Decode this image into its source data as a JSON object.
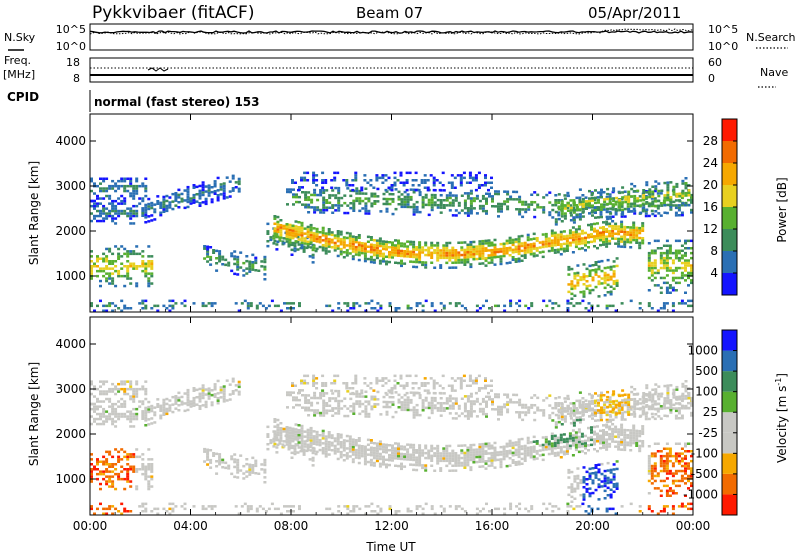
{
  "header": {
    "station": "Pykkvibaer (fitACF)",
    "beam": "Beam 07",
    "date": "05/Apr/2011"
  },
  "nsky_panel": {
    "left_label": "N.Sky",
    "left_ticks": [
      "10^5",
      "10^0"
    ],
    "right_label": "N.Search",
    "right_ticks": [
      "10^5",
      "10^0"
    ]
  },
  "freq_panel": {
    "left_label": "Freq.",
    "left_unit": "[MHz]",
    "left_ticks": [
      "18",
      "8"
    ],
    "right_label": "Nave",
    "right_ticks": [
      "60",
      "0"
    ]
  },
  "cpid": {
    "label": "CPID",
    "text": "normal (fast stereo) 153"
  },
  "colors": {
    "scale": [
      "#1414ff",
      "#2a6fb4",
      "#3c8c5a",
      "#58b030",
      "#e8d020",
      "#f6a800",
      "#f26b00",
      "#ff1a00"
    ],
    "gray": "#c8c8c4"
  },
  "chart_data": [
    {
      "type": "heatmap",
      "name": "power",
      "xlabel": "Time UT",
      "ylabel": "Slant Range [km]",
      "x_ticks": [
        "00:00",
        "04:00",
        "08:00",
        "12:00",
        "16:00",
        "20:00",
        "00:00"
      ],
      "y_ticks": [
        "1000",
        "2000",
        "3000",
        "4000"
      ],
      "ylim": [
        200,
        4600
      ],
      "xlim_hours": [
        0,
        24
      ],
      "colorbar_label": "Power [dB]",
      "colorbar_ticks": [
        "4",
        "8",
        "12",
        "16",
        "20",
        "24",
        "28"
      ],
      "colorbar_range": [
        0,
        32
      ]
    },
    {
      "type": "heatmap",
      "name": "velocity",
      "xlabel": "Time UT",
      "ylabel": "Slant Range [km]",
      "x_ticks": [
        "00:00",
        "04:00",
        "08:00",
        "12:00",
        "16:00",
        "20:00",
        "00:00"
      ],
      "y_ticks": [
        "1000",
        "2000",
        "3000",
        "4000"
      ],
      "ylim": [
        200,
        4600
      ],
      "xlim_hours": [
        0,
        24
      ],
      "colorbar_label": "Velocity [m s",
      "colorbar_label_sup": "-1",
      "colorbar_label_end": "]",
      "colorbar_ticks": [
        "1000",
        "500",
        "100",
        "25",
        "-25",
        "-100",
        "-500",
        "-1000"
      ]
    }
  ]
}
